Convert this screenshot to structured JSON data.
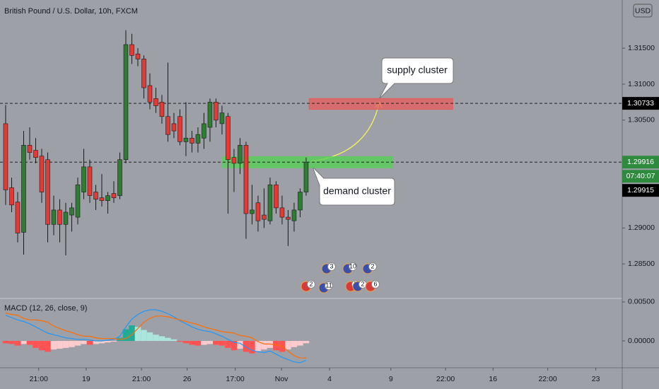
{
  "chart_data": [
    {
      "type": "candlestick",
      "title": "British Pound / U.S. Dollar, 10h, FXCM",
      "currency": "USD",
      "open": [
        1.3045,
        1.2956,
        1.2936,
        1.2894,
        1.3015,
        1.3008,
        1.3,
        1.2995,
        1.2905,
        1.2925,
        1.2905,
        1.2918,
        1.2915,
        1.295,
        1.2985,
        1.295,
        1.2942,
        1.2938,
        1.2948,
        1.2945,
        1.2995,
        1.3155,
        1.3142,
        1.3135,
        1.3098,
        1.308,
        1.3075,
        1.3055,
        1.3045,
        1.3055,
        1.302,
        1.3025,
        1.3018,
        1.3025,
        1.304,
        1.3075,
        1.3045,
        1.3055,
        1.2998,
        1.299,
        1.3015,
        1.292,
        1.2935,
        1.2918,
        1.291,
        1.296,
        1.2928,
        1.2915,
        1.291,
        1.2925,
        1.295
      ],
      "high": [
        1.3071,
        1.297,
        1.295,
        1.3035,
        1.304,
        1.3025,
        1.301,
        1.3005,
        1.2945,
        1.294,
        1.2935,
        1.2935,
        1.297,
        1.301,
        1.2995,
        1.296,
        1.2975,
        1.295,
        1.2965,
        1.3005,
        1.3175,
        1.317,
        1.315,
        1.314,
        1.3115,
        1.3095,
        1.3085,
        1.313,
        1.306,
        1.3065,
        1.3075,
        1.3035,
        1.304,
        1.306,
        1.308,
        1.308,
        1.307,
        1.306,
        1.301,
        1.3025,
        1.302,
        1.296,
        1.2945,
        1.2955,
        1.297,
        1.2965,
        1.2945,
        1.2925,
        1.2935,
        1.2955,
        1.2998
      ],
      "low": [
        1.2932,
        1.2922,
        1.288,
        1.2863,
        1.2995,
        1.299,
        1.2935,
        1.288,
        1.289,
        1.288,
        1.2862,
        1.2895,
        1.2905,
        1.294,
        1.2935,
        1.2925,
        1.293,
        1.292,
        1.2935,
        1.294,
        1.299,
        1.3128,
        1.3125,
        1.308,
        1.3065,
        1.306,
        1.3045,
        1.302,
        1.3025,
        1.3015,
        1.3,
        1.3005,
        1.3005,
        1.301,
        1.302,
        1.304,
        1.303,
        1.292,
        1.295,
        1.2975,
        1.2885,
        1.2905,
        1.2895,
        1.29,
        1.2905,
        1.292,
        1.2905,
        1.2875,
        1.2895,
        1.2915,
        1.2945
      ],
      "close": [
        1.2953,
        1.2932,
        1.2893,
        1.3015,
        1.3005,
        1.2998,
        1.295,
        1.2905,
        1.2925,
        1.2905,
        1.2922,
        1.2928,
        1.296,
        1.2985,
        1.2945,
        1.294,
        1.2938,
        1.2945,
        1.2942,
        1.2995,
        1.3155,
        1.314,
        1.3135,
        1.3095,
        1.3075,
        1.307,
        1.3055,
        1.303,
        1.3035,
        1.302,
        1.3025,
        1.3018,
        1.303,
        1.3045,
        1.3075,
        1.305,
        1.306,
        1.2995,
        1.299,
        1.3015,
        1.292,
        1.2925,
        1.291,
        1.2912,
        1.296,
        1.2928,
        1.2915,
        1.2912,
        1.2925,
        1.295,
        1.29916
      ],
      "up_color": "#2e7d32",
      "down_color": "#e53935",
      "ylim": [
        1.2802,
        1.3217
      ],
      "yticks": [
        {
          "value": 1.285,
          "label": "1.28500"
        },
        {
          "value": 1.29,
          "label": "1.29000"
        },
        {
          "value": 1.305,
          "label": "1.30500"
        },
        {
          "value": 1.31,
          "label": "1.31000"
        },
        {
          "value": 1.315,
          "label": "1.31500"
        }
      ],
      "xlim": [
        -0.94,
        102.6
      ],
      "xticks": [
        {
          "value": 5.5,
          "label": "21:00"
        },
        {
          "value": 13.4,
          "label": "19"
        },
        {
          "value": 22.6,
          "label": "21:00"
        },
        {
          "value": 30.2,
          "label": "26"
        },
        {
          "value": 38.2,
          "label": "17:00"
        },
        {
          "value": 45.9,
          "label": "Nov"
        },
        {
          "value": 53.9,
          "label": "4"
        },
        {
          "value": 64.1,
          "label": "9"
        },
        {
          "value": 73.2,
          "label": "22:00"
        },
        {
          "value": 81.1,
          "label": "16"
        },
        {
          "value": 90.2,
          "label": "22:00"
        },
        {
          "value": 98.2,
          "label": "23"
        }
      ],
      "price_lines": [
        {
          "value": 1.30733,
          "color": "#000000"
        },
        {
          "value": 1.29916,
          "color": "#2e8b3d"
        }
      ],
      "countdown": "07:40:07",
      "bid": 1.29915,
      "zones": [
        {
          "x": [
            50.5,
            74.4
          ],
          "y": [
            1.3065,
            1.308
          ],
          "color": "#e85b5b",
          "annotation": "supply cluster"
        },
        {
          "x": [
            36.1,
            64.4
          ],
          "y": [
            1.2984,
            1.2999
          ],
          "color": "#52d352",
          "annotation": "demand cluster"
        }
      ],
      "events": [
        3,
        10,
        2,
        2,
        11,
        5,
        2,
        6
      ]
    },
    {
      "type": "macd",
      "title": "MACD (12, 26, close, 9)",
      "histogram": [
        -0.0003,
        -0.0004,
        -0.0006,
        -0.0004,
        -0.0005,
        -0.0009,
        -0.0012,
        -0.0014,
        -0.0011,
        -0.001,
        -0.0009,
        -0.0008,
        -0.0006,
        -0.0004,
        -0.0005,
        -0.0004,
        -0.0003,
        -0.0002,
        -0.0001,
        0.0004,
        0.0015,
        0.002,
        0.0018,
        0.0014,
        0.0011,
        0.0008,
        0.0006,
        0.0004,
        0.0002,
        -0.0001,
        -0.0003,
        -0.0005,
        -0.0006,
        -0.0005,
        -0.0004,
        -0.0005,
        -0.0006,
        -0.0009,
        -0.0012,
        -0.001,
        -0.0014,
        -0.0016,
        -0.0013,
        -0.0011,
        -0.0009,
        -0.0012,
        -0.0014,
        -0.0011,
        -0.0008,
        -0.0006,
        -0.0003
      ],
      "hist_colors": {
        "up_rising": "#22ab94",
        "up_falling": "#ace5dc",
        "down_rising": "#fccbcd",
        "down_falling": "#ff5252"
      },
      "series": [
        {
          "color": "#2196f3",
          "values": [
            0.0033,
            0.003,
            0.0027,
            0.0025,
            0.0022,
            0.0018,
            0.0014,
            0.001,
            0.0008,
            0.0006,
            0.0004,
            0.0003,
            0.0002,
            0.0002,
            0.0001,
            0,
            0,
            0.0001,
            0.0002,
            0.0006,
            0.0018,
            0.0028,
            0.0034,
            0.0038,
            0.004,
            0.004,
            0.0038,
            0.0035,
            0.0031,
            0.0026,
            0.0022,
            0.0018,
            0.0015,
            0.0013,
            0.0012,
            0.0009,
            0.0006,
            0.0002,
            -0.0002,
            -0.0003,
            -0.0008,
            -0.0012,
            -0.0014,
            -0.0015,
            -0.0013,
            -0.0017,
            -0.0021,
            -0.0024,
            -0.0027,
            -0.0028,
            -0.0025
          ]
        },
        {
          "color": "#ff6d00",
          "values": [
            0.0036,
            0.0034,
            0.0033,
            0.0029,
            0.0027,
            0.0027,
            0.0026,
            0.0024,
            0.0019,
            0.0016,
            0.0013,
            0.0011,
            0.0008,
            0.0006,
            0.0006,
            0.0004,
            0.0003,
            0.0003,
            0.0003,
            0.0002,
            0.0003,
            0.0008,
            0.0016,
            0.0024,
            0.0029,
            0.0032,
            0.0032,
            0.0031,
            0.0029,
            0.0027,
            0.0025,
            0.0023,
            0.0021,
            0.0018,
            0.0016,
            0.0014,
            0.0012,
            0.0011,
            0.001,
            0.0007,
            0.0006,
            0.0004,
            -0.0001,
            -0.0004,
            -0.0004,
            -0.0005,
            -0.0007,
            -0.0013,
            -0.0019,
            -0.0022,
            -0.0022
          ]
        }
      ],
      "ylim": [
        -0.00345,
        0.00545
      ],
      "yticks": [
        {
          "value": 0.005,
          "label": "0.00500"
        },
        {
          "value": 0,
          "label": "0.00000"
        }
      ]
    }
  ]
}
